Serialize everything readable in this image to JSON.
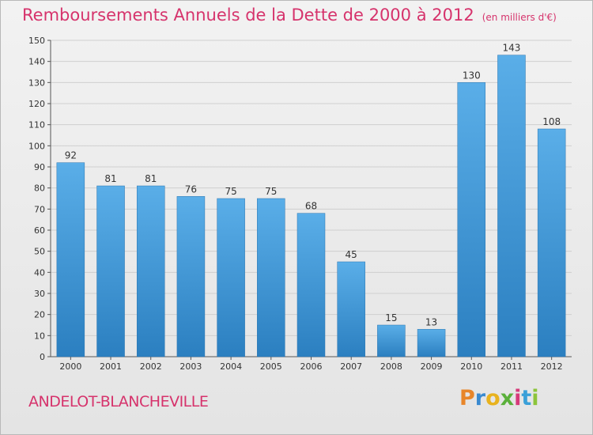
{
  "chart_data": {
    "type": "bar",
    "title": "Remboursements Annuels de la Dette de 2000 à 2012",
    "unit": "(en milliers d'€)",
    "categories": [
      "2000",
      "2001",
      "2002",
      "2003",
      "2004",
      "2005",
      "2006",
      "2007",
      "2008",
      "2009",
      "2010",
      "2011",
      "2012"
    ],
    "values": [
      92,
      81,
      81,
      76,
      75,
      75,
      68,
      45,
      15,
      13,
      130,
      143,
      108
    ],
    "ylim": [
      0,
      150
    ],
    "yticks": [
      0,
      10,
      20,
      30,
      40,
      50,
      60,
      70,
      80,
      90,
      100,
      110,
      120,
      130,
      140,
      150
    ],
    "grid": true,
    "bar_color_top": "#5aaee8",
    "bar_color_bottom": "#2b7fc0"
  },
  "footer": {
    "commune": "ANDELOT-BLANCHEVILLE",
    "brand_letters": [
      "P",
      "r",
      "o",
      "x",
      "i",
      "t",
      "i"
    ],
    "brand_colors": [
      "#e8862a",
      "#3a8ad0",
      "#e8b21e",
      "#5ab03a",
      "#d63a7a",
      "#3aa0d8",
      "#8cc43a"
    ]
  },
  "colors": {
    "title": "#d6336c",
    "grid": "#cfcfcf",
    "axis": "#555555"
  }
}
